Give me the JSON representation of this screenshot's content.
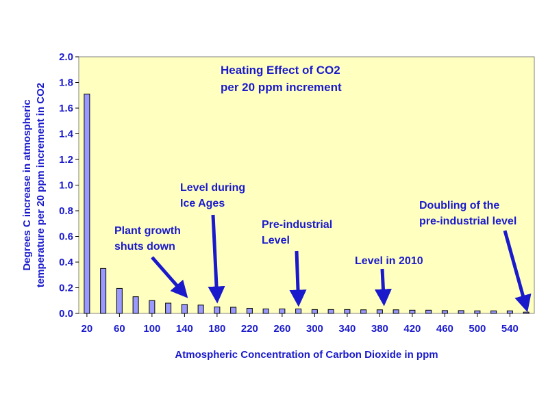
{
  "chart_data": {
    "type": "bar",
    "title_lines": [
      "Heating Effect of CO2",
      "per 20 ppm increment"
    ],
    "xlabel": "Atmospheric Concentration of Carbon Dioxide in ppm",
    "ylabel_lines": [
      "Degrees C increase in atmospheric",
      "temperature per 20 ppm increment in CO2"
    ],
    "ylim": [
      0,
      2.0
    ],
    "yticks": [
      "0.0",
      "0.2",
      "0.4",
      "0.6",
      "0.8",
      "1.0",
      "1.2",
      "1.4",
      "1.6",
      "1.8",
      "2.0"
    ],
    "categories": [
      20,
      40,
      60,
      80,
      100,
      120,
      140,
      160,
      180,
      200,
      220,
      240,
      260,
      280,
      300,
      320,
      340,
      360,
      380,
      400,
      420,
      440,
      460,
      480,
      500,
      520,
      540,
      560
    ],
    "xtick_labels": [
      "20",
      "60",
      "100",
      "140",
      "180",
      "220",
      "260",
      "300",
      "340",
      "380",
      "420",
      "460",
      "500",
      "540"
    ],
    "values": [
      1.71,
      0.35,
      0.195,
      0.13,
      0.1,
      0.08,
      0.07,
      0.065,
      0.05,
      0.048,
      0.04,
      0.035,
      0.035,
      0.035,
      0.03,
      0.03,
      0.03,
      0.028,
      0.028,
      0.028,
      0.025,
      0.025,
      0.022,
      0.022,
      0.02,
      0.02,
      0.02,
      0.01
    ],
    "grid": false,
    "colors": {
      "plot_background": "#ffffc0",
      "bar_fill": "#9999ff",
      "bar_stroke": "#000000",
      "text": "#1a1acc",
      "arrow": "#1a1acc"
    },
    "annotations": [
      {
        "lines": [
          "Plant growth",
          "shuts down"
        ],
        "target_x": 140
      },
      {
        "lines": [
          "Level during",
          "Ice Ages"
        ],
        "target_x": 180
      },
      {
        "lines": [
          "Pre-industrial",
          "Level"
        ],
        "target_x": 280
      },
      {
        "lines": [
          "Level  in 2010"
        ],
        "target_x": 385
      },
      {
        "lines": [
          "Doubling of the",
          "pre-industrial level"
        ],
        "target_x": 560
      }
    ]
  }
}
